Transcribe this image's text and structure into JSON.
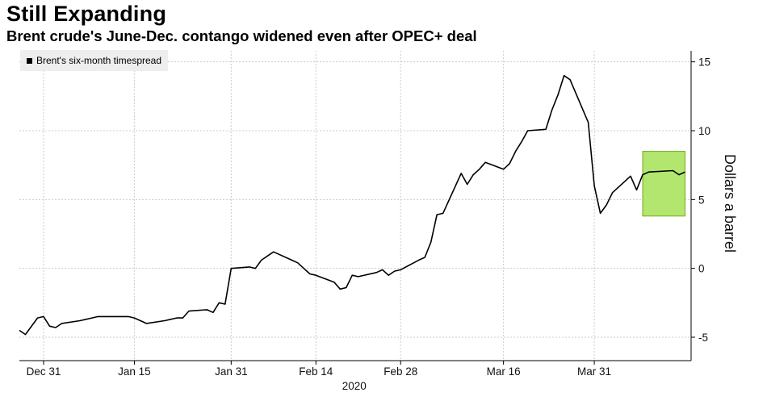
{
  "chart_data": {
    "type": "line",
    "title": "Still Expanding",
    "subtitle": "Brent crude's June-Dec. contango widened even after OPEC+ deal",
    "xlabel": "2020",
    "ylabel": "Dollars a barrel",
    "ylim": [
      -6.7,
      15.8
    ],
    "y_ticks": [
      15,
      10,
      5,
      0,
      -5
    ],
    "y_tick_labels": [
      "15",
      "10",
      "5",
      "0",
      "-5"
    ],
    "x_ticks": [
      {
        "date": "2019-12-31",
        "label": "Dec 31"
      },
      {
        "date": "2020-01-15",
        "label": "Jan 15"
      },
      {
        "date": "2020-01-31",
        "label": "Jan 31"
      },
      {
        "date": "2020-02-14",
        "label": "Feb 14"
      },
      {
        "date": "2020-02-28",
        "label": "Feb 28"
      },
      {
        "date": "2020-03-16",
        "label": "Mar 16"
      },
      {
        "date": "2020-03-31",
        "label": "Mar 31"
      }
    ],
    "xlim": [
      "2019-12-27",
      "2020-04-16"
    ],
    "grid": true,
    "legend_position": "top-left",
    "highlight": {
      "x_start": "2020-04-08",
      "x_end": "2020-04-15",
      "y_start": 3.8,
      "y_end": 8.5,
      "color": "#b3e66e"
    },
    "series": [
      {
        "name": "Brent's six-month timespread",
        "color": "#000000",
        "x": [
          "2019-12-27",
          "2019-12-28",
          "2019-12-30",
          "2019-12-31",
          "2020-01-01",
          "2020-01-02",
          "2020-01-03",
          "2020-01-06",
          "2020-01-07",
          "2020-01-08",
          "2020-01-09",
          "2020-01-10",
          "2020-01-13",
          "2020-01-14",
          "2020-01-15",
          "2020-01-16",
          "2020-01-17",
          "2020-01-20",
          "2020-01-21",
          "2020-01-22",
          "2020-01-23",
          "2020-01-24",
          "2020-01-27",
          "2020-01-28",
          "2020-01-29",
          "2020-01-30",
          "2020-01-31",
          "2020-02-03",
          "2020-02-04",
          "2020-02-05",
          "2020-02-06",
          "2020-02-07",
          "2020-02-10",
          "2020-02-11",
          "2020-02-12",
          "2020-02-13",
          "2020-02-14",
          "2020-02-17",
          "2020-02-18",
          "2020-02-19",
          "2020-02-20",
          "2020-02-21",
          "2020-02-24",
          "2020-02-25",
          "2020-02-26",
          "2020-02-27",
          "2020-02-28",
          "2020-03-02",
          "2020-03-03",
          "2020-03-04",
          "2020-03-05",
          "2020-03-06",
          "2020-03-09",
          "2020-03-10",
          "2020-03-11",
          "2020-03-12",
          "2020-03-13",
          "2020-03-16",
          "2020-03-17",
          "2020-03-18",
          "2020-03-19",
          "2020-03-20",
          "2020-03-23",
          "2020-03-24",
          "2020-03-25",
          "2020-03-26",
          "2020-03-27",
          "2020-03-30",
          "2020-03-31",
          "2020-04-01",
          "2020-04-02",
          "2020-04-03",
          "2020-04-06",
          "2020-04-07",
          "2020-04-08",
          "2020-04-09",
          "2020-04-13",
          "2020-04-14",
          "2020-04-15"
        ],
        "values": [
          -4.5,
          -4.8,
          -3.6,
          -3.5,
          -4.2,
          -4.3,
          -4.0,
          -3.8,
          -3.7,
          -3.6,
          -3.5,
          -3.5,
          -3.5,
          -3.5,
          -3.6,
          -3.8,
          -4.0,
          -3.8,
          -3.7,
          -3.6,
          -3.6,
          -3.1,
          -3.0,
          -3.2,
          -2.5,
          -2.6,
          0.0,
          0.1,
          0.0,
          0.6,
          0.9,
          1.2,
          0.6,
          0.4,
          0.0,
          -0.4,
          -0.5,
          -1.0,
          -1.5,
          -1.4,
          -0.5,
          -0.6,
          -0.3,
          -0.1,
          -0.5,
          -0.2,
          -0.1,
          0.6,
          0.8,
          1.9,
          3.9,
          4.0,
          6.9,
          6.1,
          6.8,
          7.2,
          7.7,
          7.2,
          7.6,
          8.5,
          9.2,
          10.0,
          10.1,
          11.5,
          12.6,
          14.0,
          13.7,
          10.6,
          6.0,
          4.0,
          4.6,
          5.5,
          6.7,
          5.7,
          6.8,
          7.0,
          7.1,
          6.8,
          7.0
        ]
      }
    ]
  },
  "legend": {
    "label": "Brent's six-month timespread"
  },
  "colors": {
    "line": "#000000",
    "grid": "#cccccc",
    "highlight_fill": "#b3e66e",
    "highlight_stroke": "#6fae1a",
    "legend_bg": "#eeeeee"
  }
}
